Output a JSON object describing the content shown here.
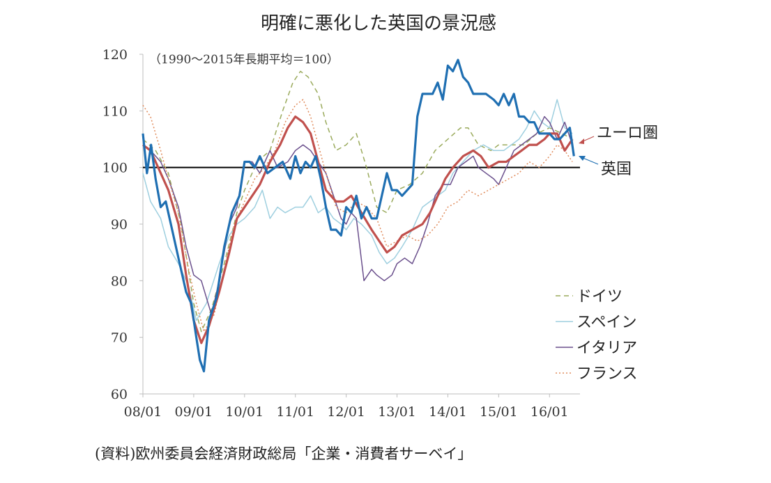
{
  "chart_data": {
    "type": "line",
    "title": "明確に悪化した英国の景況感",
    "note": "（1990〜2015年長期平均＝100）",
    "source": "(資料)欧州委員会経済財政総局「企業・消費者サーベイ」",
    "ylim": [
      60,
      120
    ],
    "yticks": [
      60,
      70,
      80,
      90,
      100,
      110,
      120
    ],
    "ytick_labels": [
      "60",
      "70",
      "80",
      "90",
      "100",
      "110",
      "120"
    ],
    "xticks": [
      2008.0,
      2009.0,
      2010.0,
      2011.0,
      2012.0,
      2013.0,
      2014.0,
      2015.0,
      2016.0
    ],
    "xtick_labels": [
      "08/01",
      "09/01",
      "10/01",
      "11/01",
      "12/01",
      "13/01",
      "14/01",
      "15/01",
      "16/01"
    ],
    "xlim": [
      2008.0,
      2016.6
    ],
    "reference_line": 100,
    "labels": {
      "euro": "ユーロ圏",
      "uk": "英国"
    },
    "legend": [
      {
        "name": "ドイツ",
        "style": "dash"
      },
      {
        "name": "スペイン",
        "style": "solid"
      },
      {
        "name": "イタリア",
        "style": "solid"
      },
      {
        "name": "フランス",
        "style": "dot"
      }
    ],
    "series": [
      {
        "name": "ドイツ",
        "color": "#9aaa5c",
        "width": 1.5,
        "dash": "7 5",
        "x": [
          2008.0,
          2008.25,
          2008.5,
          2008.75,
          2009.0,
          2009.15,
          2009.35,
          2009.6,
          2009.85,
          2010.0,
          2010.25,
          2010.5,
          2010.75,
          2010.95,
          2011.1,
          2011.25,
          2011.45,
          2011.6,
          2011.8,
          2012.0,
          2012.2,
          2012.4,
          2012.6,
          2012.8,
          2013.0,
          2013.25,
          2013.5,
          2013.75,
          2014.0,
          2014.25,
          2014.4,
          2014.6,
          2014.85,
          2015.0,
          2015.25,
          2015.5,
          2015.75,
          2016.0,
          2016.25,
          2016.45
        ],
        "values": [
          105,
          103,
          99,
          90,
          76,
          71,
          75,
          83,
          92,
          96,
          101,
          103,
          110,
          115,
          117,
          116,
          113,
          108,
          103,
          104,
          106,
          100,
          93,
          92,
          96,
          97,
          99,
          103,
          105,
          107,
          107,
          104,
          103,
          104,
          104,
          104,
          106,
          107,
          106,
          105
        ]
      },
      {
        "name": "スペイン",
        "color": "#9ecfdf",
        "width": 1.5,
        "dash": "",
        "x": [
          2008.0,
          2008.15,
          2008.35,
          2008.5,
          2008.7,
          2008.9,
          2009.05,
          2009.25,
          2009.5,
          2009.7,
          2009.85,
          2010.0,
          2010.2,
          2010.35,
          2010.5,
          2010.65,
          2010.8,
          2011.0,
          2011.15,
          2011.3,
          2011.45,
          2011.6,
          2011.75,
          2011.9,
          2012.0,
          2012.15,
          2012.3,
          2012.5,
          2012.65,
          2012.8,
          2012.95,
          2013.1,
          2013.3,
          2013.5,
          2013.65,
          2013.8,
          2013.95,
          2014.1,
          2014.3,
          2014.5,
          2014.7,
          2014.9,
          2015.1,
          2015.25,
          2015.4,
          2015.55,
          2015.7,
          2015.85,
          2016.0,
          2016.15,
          2016.3,
          2016.45
        ],
        "values": [
          99,
          94,
          91,
          86,
          83,
          79,
          73,
          76,
          83,
          88,
          90,
          91,
          93,
          96,
          91,
          93,
          92,
          93,
          93,
          95,
          92,
          93,
          91,
          90,
          89,
          91,
          90,
          88,
          85,
          83,
          84,
          86,
          89,
          93,
          94,
          95,
          96,
          99,
          101,
          103,
          104,
          103,
          103,
          104,
          105,
          107,
          110,
          108,
          107,
          112,
          107,
          106
        ]
      },
      {
        "name": "イタリア",
        "color": "#6a4f8c",
        "width": 1.5,
        "dash": "",
        "x": [
          2008.0,
          2008.15,
          2008.35,
          2008.5,
          2008.7,
          2008.85,
          2009.0,
          2009.15,
          2009.35,
          2009.5,
          2009.7,
          2009.85,
          2010.0,
          2010.15,
          2010.3,
          2010.5,
          2010.65,
          2010.85,
          2011.0,
          2011.15,
          2011.3,
          2011.45,
          2011.6,
          2011.75,
          2011.9,
          2012.0,
          2012.1,
          2012.2,
          2012.35,
          2012.5,
          2012.6,
          2012.75,
          2012.9,
          2013.0,
          2013.15,
          2013.3,
          2013.45,
          2013.6,
          2013.75,
          2013.9,
          2014.05,
          2014.2,
          2014.35,
          2014.5,
          2014.6,
          2014.75,
          2014.9,
          2015.0,
          2015.15,
          2015.3,
          2015.45,
          2015.6,
          2015.75,
          2015.9,
          2016.0,
          2016.15,
          2016.3,
          2016.45
        ],
        "values": [
          104,
          103,
          101,
          98,
          93,
          86,
          81,
          80,
          74,
          80,
          90,
          93,
          101,
          101,
          99,
          103,
          100,
          101,
          103,
          104,
          103,
          101,
          99,
          95,
          91,
          90,
          92,
          91,
          80,
          82,
          81,
          80,
          81,
          83,
          84,
          83,
          86,
          90,
          95,
          97,
          97,
          100,
          101,
          102,
          100,
          99,
          98,
          97,
          100,
          103,
          104,
          105,
          106,
          109,
          108,
          105,
          108,
          104
        ]
      },
      {
        "name": "フランス",
        "color": "#e08a5a",
        "width": 1.5,
        "dash": "2 3",
        "x": [
          2008.0,
          2008.15,
          2008.35,
          2008.5,
          2008.7,
          2008.9,
          2009.05,
          2009.2,
          2009.4,
          2009.6,
          2009.8,
          2010.0,
          2010.2,
          2010.4,
          2010.6,
          2010.8,
          2011.0,
          2011.15,
          2011.3,
          2011.45,
          2011.6,
          2011.8,
          2012.0,
          2012.2,
          2012.4,
          2012.6,
          2012.8,
          2013.0,
          2013.2,
          2013.4,
          2013.6,
          2013.8,
          2014.0,
          2014.2,
          2014.4,
          2014.6,
          2014.8,
          2015.0,
          2015.2,
          2015.4,
          2015.6,
          2015.8,
          2016.0,
          2016.15,
          2016.3,
          2016.45
        ],
        "values": [
          111,
          109,
          103,
          98,
          92,
          82,
          76,
          71,
          74,
          82,
          90,
          94,
          98,
          100,
          103,
          108,
          111,
          112,
          109,
          104,
          99,
          93,
          92,
          94,
          93,
          91,
          86,
          87,
          88,
          87,
          88,
          90,
          93,
          94,
          96,
          95,
          96,
          97,
          98,
          99,
          101,
          100,
          102,
          104,
          103,
          101
        ]
      },
      {
        "name": "ユーロ圏",
        "color": "#c0504d",
        "width": 3.2,
        "dash": "",
        "x": [
          2008.0,
          2008.15,
          2008.3,
          2008.5,
          2008.7,
          2008.85,
          2009.0,
          2009.15,
          2009.3,
          2009.5,
          2009.7,
          2009.85,
          2010.0,
          2010.15,
          2010.3,
          2010.5,
          2010.7,
          2010.85,
          2011.0,
          2011.15,
          2011.3,
          2011.45,
          2011.6,
          2011.8,
          2011.95,
          2012.1,
          2012.3,
          2012.5,
          2012.65,
          2012.8,
          2012.95,
          2013.1,
          2013.3,
          2013.5,
          2013.65,
          2013.8,
          2013.95,
          2014.1,
          2014.3,
          2014.5,
          2014.65,
          2014.8,
          2015.0,
          2015.15,
          2015.3,
          2015.45,
          2015.6,
          2015.75,
          2015.9,
          2016.0,
          2016.15,
          2016.3,
          2016.45
        ],
        "values": [
          104,
          103,
          100,
          96,
          90,
          81,
          73,
          69,
          72,
          78,
          85,
          91,
          93,
          95,
          97,
          101,
          104,
          107,
          109,
          108,
          106,
          101,
          96,
          94,
          94,
          95,
          92,
          89,
          87,
          85,
          86,
          88,
          89,
          90,
          92,
          95,
          98,
          100,
          102,
          103,
          102,
          100,
          101,
          101,
          102,
          103,
          104,
          104,
          105,
          106,
          106,
          103,
          105
        ]
      },
      {
        "name": "英国",
        "color": "#1f6fb2",
        "width": 3.2,
        "dash": "",
        "x": [
          2008.0,
          2008.08,
          2008.16,
          2008.25,
          2008.35,
          2008.45,
          2008.55,
          2008.7,
          2008.85,
          2008.95,
          2009.05,
          2009.12,
          2009.2,
          2009.3,
          2009.45,
          2009.6,
          2009.75,
          2009.9,
          2010.0,
          2010.1,
          2010.2,
          2010.3,
          2010.45,
          2010.6,
          2010.75,
          2010.9,
          2011.0,
          2011.1,
          2011.2,
          2011.3,
          2011.4,
          2011.5,
          2011.6,
          2011.7,
          2011.8,
          2011.9,
          2012.0,
          2012.1,
          2012.2,
          2012.3,
          2012.4,
          2012.5,
          2012.6,
          2012.7,
          2012.8,
          2012.9,
          2013.0,
          2013.1,
          2013.2,
          2013.3,
          2013.4,
          2013.5,
          2013.6,
          2013.7,
          2013.8,
          2013.9,
          2014.0,
          2014.1,
          2014.2,
          2014.3,
          2014.4,
          2014.5,
          2014.6,
          2014.75,
          2014.9,
          2015.0,
          2015.1,
          2015.2,
          2015.3,
          2015.4,
          2015.5,
          2015.6,
          2015.7,
          2015.8,
          2015.9,
          2016.0,
          2016.1,
          2016.2,
          2016.3,
          2016.4,
          2016.48
        ],
        "values": [
          106,
          99,
          104,
          98,
          93,
          94,
          90,
          84,
          78,
          76,
          70,
          66,
          64,
          73,
          77,
          86,
          92,
          95,
          101,
          101,
          100,
          102,
          99,
          100,
          101,
          98,
          102,
          99,
          101,
          100,
          102,
          98,
          93,
          89,
          89,
          88,
          93,
          92,
          95,
          91,
          93,
          91,
          91,
          95,
          99,
          96,
          96,
          95,
          96,
          97,
          109,
          113,
          113,
          113,
          115,
          112,
          118,
          117,
          119,
          116,
          115,
          113,
          113,
          113,
          112,
          111,
          113,
          111,
          113,
          109,
          109,
          108,
          108,
          106,
          106,
          106,
          105,
          105,
          106,
          107,
          102
        ]
      }
    ]
  }
}
